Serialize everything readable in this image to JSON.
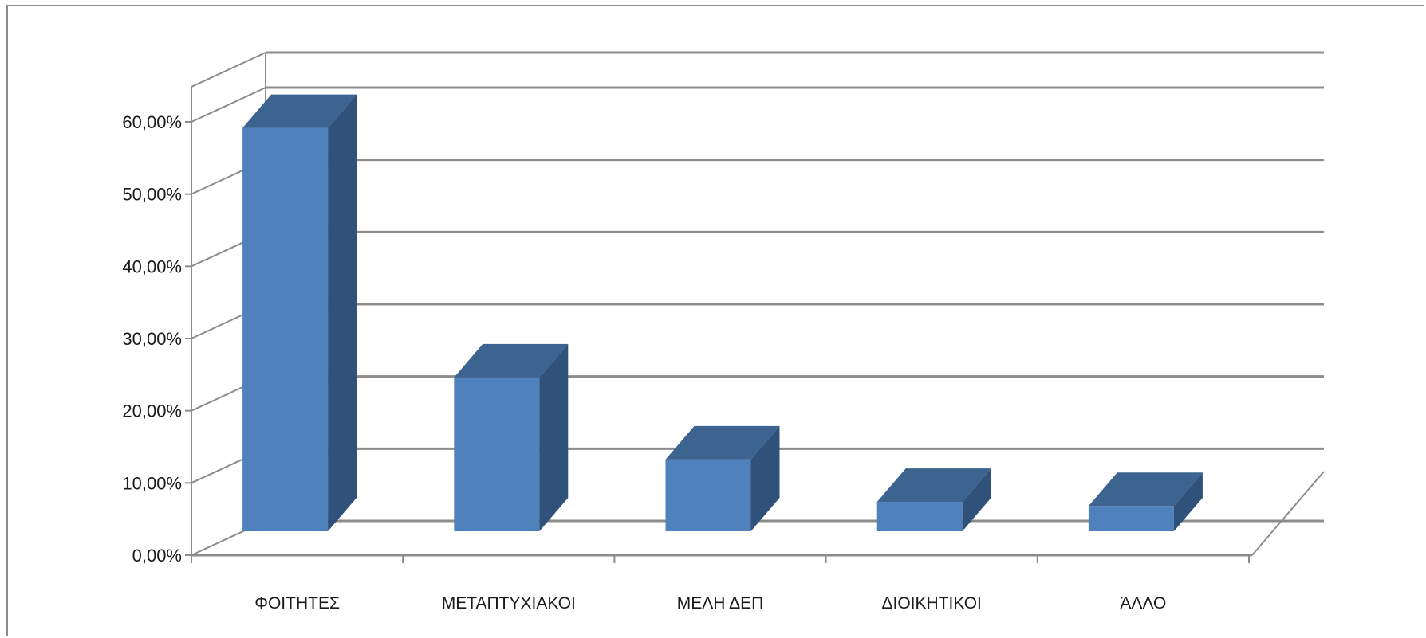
{
  "chart_data": {
    "type": "bar",
    "title": "",
    "xlabel": "",
    "ylabel": "",
    "categories": [
      "ΦΟΙΤΗΤΕΣ",
      "ΜΕΤΑΠΤΥΧΙΑΚΟΙ",
      "ΜΕΛΗ ΔΕΠ",
      "ΔΙΟΙΚΗΤΙΚΟΙ",
      "ΆΛΛΟ"
    ],
    "values": [
      59.0,
      22.5,
      10.5,
      4.3,
      3.7
    ],
    "value_unit": "%",
    "ylim": [
      0,
      60
    ],
    "y_ticks": [
      "0,00%",
      "10,00%",
      "20,00%",
      "30,00%",
      "40,00%",
      "50,00%",
      "60,00%"
    ],
    "grid": true,
    "legend": "none",
    "style": "3d-column",
    "colors": {
      "bar_front": "#4f81bd",
      "bar_top": "#3d6491",
      "bar_side": "#30527a",
      "grid": "#8c8c8c"
    }
  }
}
